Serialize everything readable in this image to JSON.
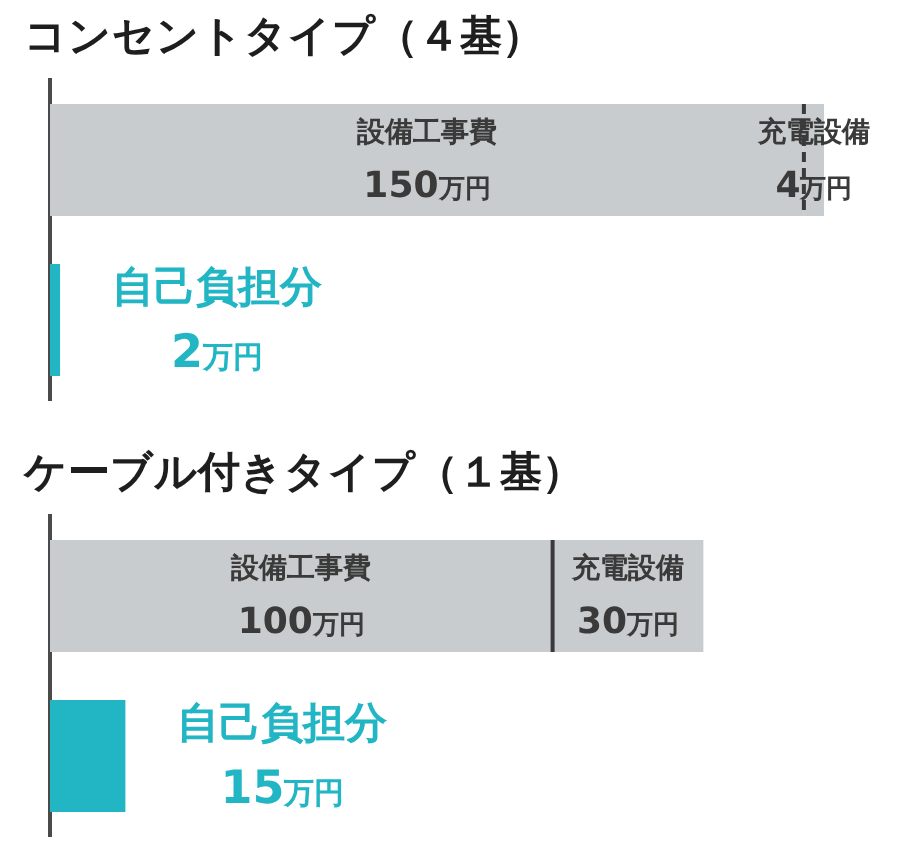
{
  "chart_data": [
    {
      "type": "bar",
      "title": "コンセントタイプ（４基）",
      "orientation": "horizontal",
      "stacked": true,
      "categories": [
        null,
        null
      ],
      "tick_labels": false,
      "series": [
        {
          "name": "設備工事費",
          "color": "#c9ccce",
          "values": [
            150,
            null
          ],
          "value_labels": [
            "150万円",
            null
          ]
        },
        {
          "name": "充電設備",
          "color": "#c9ccce",
          "values": [
            4,
            null
          ],
          "value_labels": [
            "4万円",
            null
          ],
          "line_style": "dashed"
        },
        {
          "name": "自己負担分",
          "color": "#22b5c4",
          "values": [
            null,
            2
          ],
          "value_labels": [
            null,
            "2万円"
          ]
        }
      ]
    },
    {
      "type": "bar",
      "title": "ケーブル付きタイプ（１基）",
      "orientation": "horizontal",
      "stacked": true,
      "categories": [
        null,
        null
      ],
      "tick_labels": false,
      "series": [
        {
          "name": "設備工事費",
          "color": "#c9ccce",
          "values": [
            100,
            null
          ],
          "value_labels": [
            "100万円",
            null
          ]
        },
        {
          "name": "充電設備",
          "color": "#c9ccce",
          "values": [
            30,
            null
          ],
          "value_labels": [
            "30万円",
            null
          ]
        },
        {
          "name": "自己負担分",
          "color": "#22b5c4",
          "values": [
            null,
            15
          ],
          "value_labels": [
            null,
            "15万円"
          ]
        }
      ]
    }
  ]
}
